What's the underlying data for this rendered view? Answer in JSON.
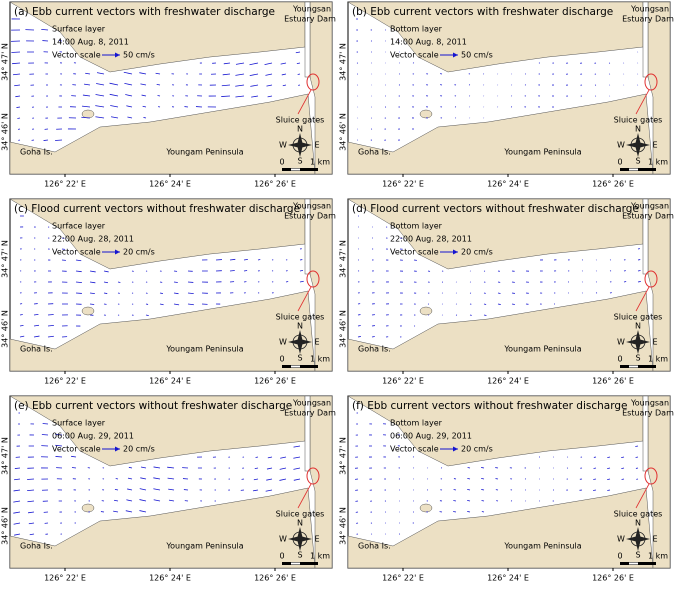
{
  "common": {
    "dam_line1": "Youngsan",
    "dam_line2": "Estuary Dam",
    "sluice": "Sluice gates",
    "island": "Goha Is.",
    "peninsula": "Youngam Peninsula",
    "vector_scale": "Vector scale",
    "compass_n": "N",
    "compass_s": "S",
    "compass_w": "W",
    "compass_e": "E",
    "scale_zero": "0",
    "scale_km": "1 km",
    "lat_ticks": [
      "34° 47' N",
      "34° 46' N"
    ],
    "lon_ticks": [
      "126° 22' E",
      "126° 24' E",
      "126° 26' E"
    ]
  },
  "panels": [
    {
      "title": "(a) Ebb current vectors with freshwater discharge",
      "layer": "Surface layer",
      "time": "14:00 Aug. 8, 2011",
      "scale": "50 cm/s"
    },
    {
      "title": "(b) Ebb current vectors with freshwater discharge",
      "layer": "Bottom layer",
      "time": "14:00 Aug. 8, 2011",
      "scale": "50 cm/s"
    },
    {
      "title": "(c) Flood current vectors without freshwater discharge",
      "layer": "Surface layer",
      "time": "22:00 Aug. 28, 2011",
      "scale": "20 cm/s"
    },
    {
      "title": "(d) Flood current vectors without freshwater discharge",
      "layer": "Bottom layer",
      "time": "22:00 Aug. 28, 2011",
      "scale": "20 cm/s"
    },
    {
      "title": "(e) Ebb current vectors without freshwater discharge",
      "layer": "Surface layer",
      "time": "06:00 Aug. 29, 2011",
      "scale": "20 cm/s"
    },
    {
      "title": "(f) Ebb current vectors without freshwater discharge",
      "layer": "Bottom layer",
      "time": "06:00 Aug. 29, 2011",
      "scale": "20 cm/s"
    }
  ]
}
